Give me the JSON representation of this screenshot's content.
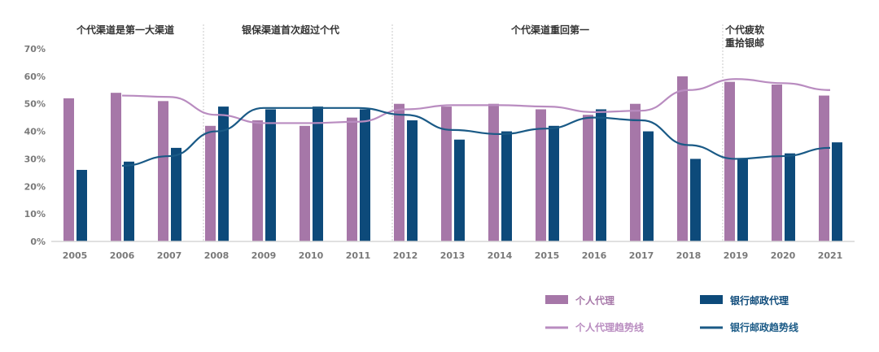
{
  "chart_data": {
    "type": "bar",
    "categories": [
      "2005",
      "2006",
      "2007",
      "2008",
      "2009",
      "2010",
      "2011",
      "2012",
      "2013",
      "2014",
      "2015",
      "2016",
      "2017",
      "2018",
      "2019",
      "2020",
      "2021"
    ],
    "series": [
      {
        "name": "个人代理",
        "kind": "bar",
        "color": "#a677a8",
        "values": [
          52,
          54,
          51,
          42,
          44,
          42,
          45,
          50,
          49,
          50,
          48,
          46,
          50,
          60,
          58,
          57,
          53
        ]
      },
      {
        "name": "银行邮政代理",
        "kind": "bar",
        "color": "#0d4a7a",
        "values": [
          26,
          29,
          34,
          49,
          48,
          49,
          48,
          44,
          37,
          40,
          42,
          48,
          40,
          30,
          30,
          32,
          36
        ]
      },
      {
        "name": "个人代理趋势线",
        "kind": "line",
        "color": "#b98cc0",
        "values": [
          null,
          53,
          52.5,
          46,
          43,
          43,
          43.5,
          48,
          49.5,
          49.5,
          49,
          47,
          47.5,
          55,
          59,
          57.5,
          55
        ]
      },
      {
        "name": "银行邮政趋势线",
        "kind": "line",
        "color": "#1a5a86",
        "values": [
          null,
          27.5,
          31,
          40,
          48.5,
          48.5,
          48.5,
          46,
          40.5,
          39,
          41,
          45,
          44,
          35,
          30,
          31,
          34
        ]
      }
    ],
    "yticks": [
      "0%",
      "10%",
      "20%",
      "30%",
      "40%",
      "50%",
      "60%",
      "70%"
    ],
    "ylim": [
      0,
      70
    ],
    "yunit": "%",
    "grid": false,
    "legend_position": "bottom-right",
    "annotations": [
      {
        "text": "个代渠道是第一大渠道",
        "from": "2005",
        "to": "2007"
      },
      {
        "text": "银保渠道首次超过个代",
        "from": "2008",
        "to": "2011"
      },
      {
        "text": "个代渠道重回第一",
        "from": "2012",
        "to": "2018"
      },
      {
        "text": [
          "个代疲软",
          "重拾银邮"
        ],
        "from": "2019",
        "to": "2021"
      }
    ],
    "dividers_before": [
      "2008",
      "2012",
      "2019"
    ]
  }
}
